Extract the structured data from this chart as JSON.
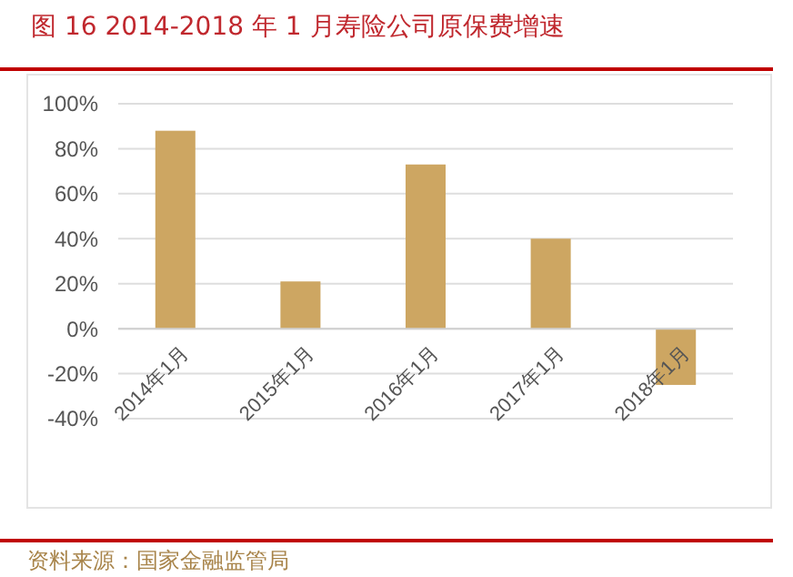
{
  "chart_data": {
    "type": "bar",
    "title": "图 16 2014-2018 年 1 月寿险公司原保费增速",
    "categories": [
      "2014年1月",
      "2015年1月",
      "2016年1月",
      "2017年1月",
      "2018年1月"
    ],
    "values": [
      88,
      21,
      73,
      40,
      -25
    ],
    "color": "#cda662",
    "ylim": [
      -40,
      100
    ],
    "yticks": [
      {
        "value": -40,
        "label": "-40%"
      },
      {
        "value": -20,
        "label": "-20%"
      },
      {
        "value": 0,
        "label": "0%"
      },
      {
        "value": 20,
        "label": "20%"
      },
      {
        "value": 40,
        "label": "40%"
      },
      {
        "value": 60,
        "label": "60%"
      },
      {
        "value": 80,
        "label": "80%"
      },
      {
        "value": 100,
        "label": "100%"
      }
    ],
    "grid": "y",
    "annotations": [
      "资料来源：国家金融监管局"
    ]
  }
}
